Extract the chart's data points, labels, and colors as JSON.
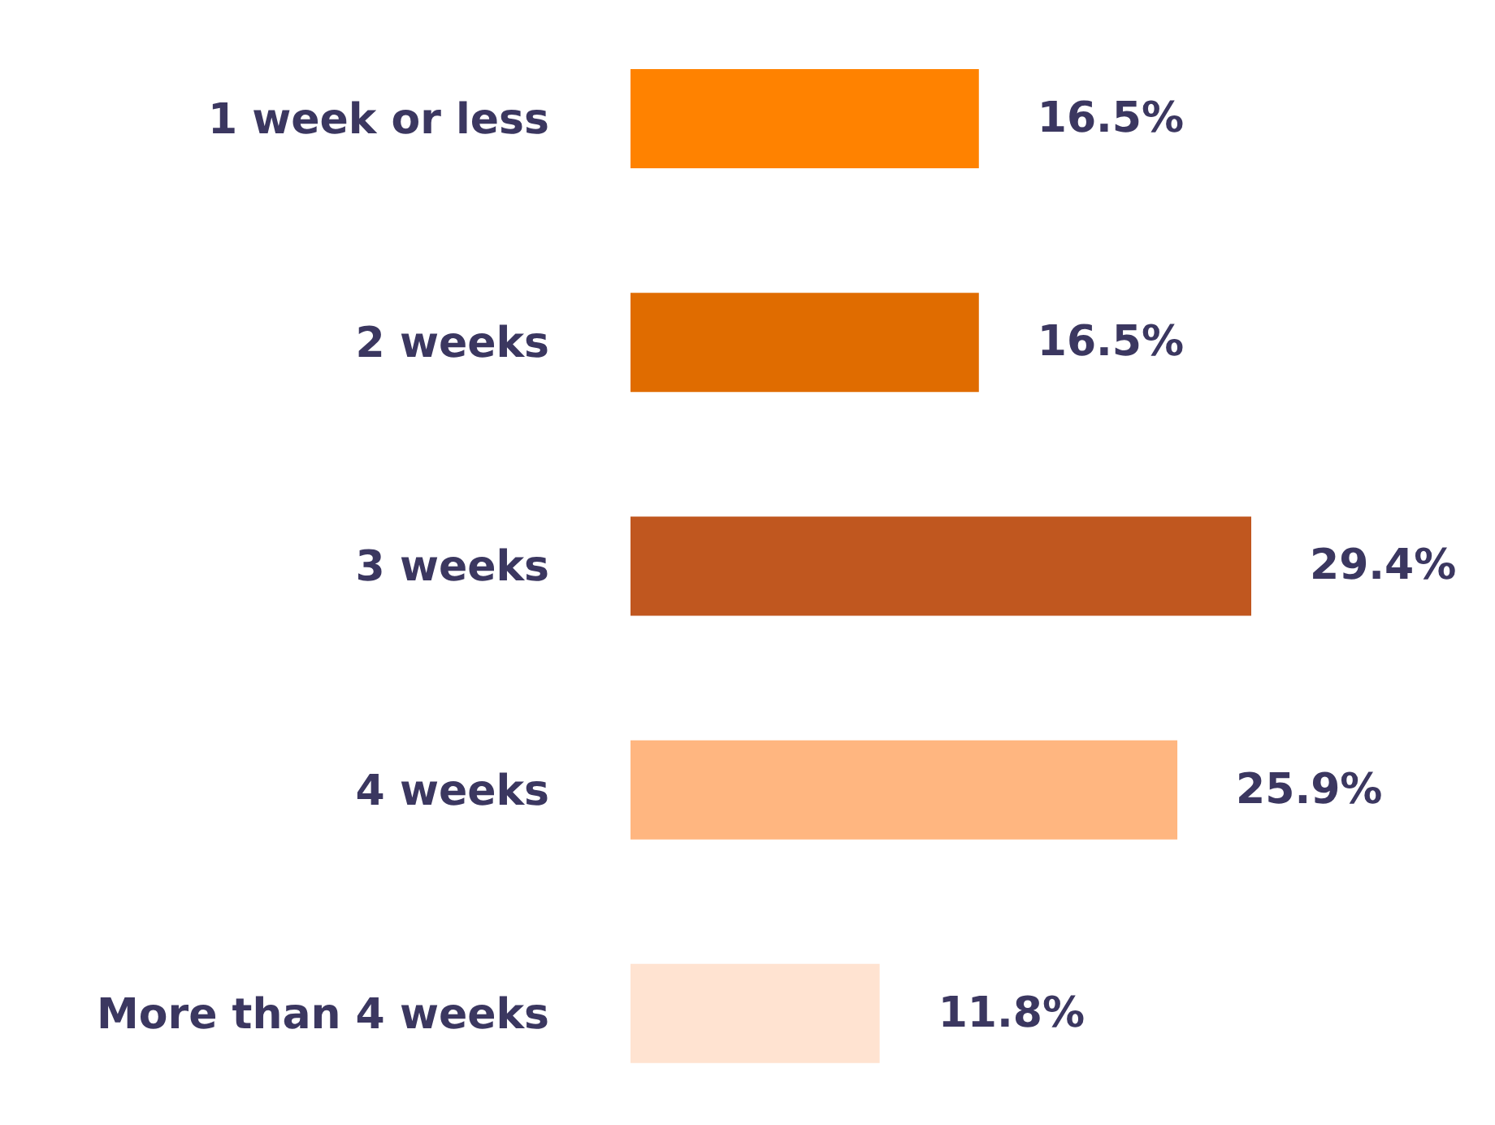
{
  "chart_data": {
    "type": "bar",
    "orientation": "horizontal",
    "categories": [
      "1 week or less",
      "2 weeks",
      "3 weeks",
      "4 weeks",
      "More than 4 weeks"
    ],
    "values": [
      16.5,
      16.5,
      29.4,
      25.9,
      11.8
    ],
    "colors": [
      "#ff8200",
      "#e06c00",
      "#c0571f",
      "#ffb680",
      "#ffe3d1"
    ],
    "value_labels": [
      "16.5%",
      "16.5%",
      "29.4%",
      "25.9%",
      "11.8%"
    ],
    "grid": false,
    "legend": false
  }
}
